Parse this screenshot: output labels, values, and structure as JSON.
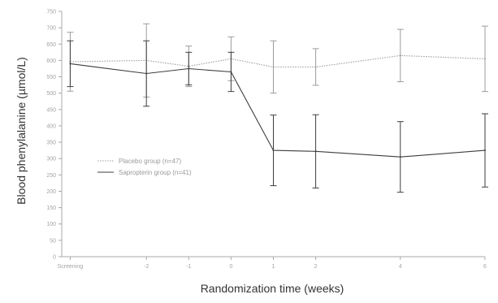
{
  "chart_data": {
    "type": "line",
    "title": "",
    "xlabel": "Randomization time (weeks)",
    "ylabel": "Blood phenylalanine (µmol/L)",
    "categories": [
      "Screening",
      "-2",
      "-1",
      "0",
      "1",
      "2",
      "4",
      "6"
    ],
    "x_positions": [
      -3.8,
      -2,
      -1,
      0,
      1,
      2,
      4,
      6
    ],
    "xlim": [
      -4,
      6
    ],
    "y_tick_labels": [
      "0",
      "50",
      "100",
      "150",
      "200",
      "250",
      "300",
      "350",
      "400",
      "450",
      "500",
      "550",
      "600",
      "650",
      "700",
      "750"
    ],
    "ylim": [
      0,
      750
    ],
    "grid": false,
    "legend_placement": "middle-left",
    "series": [
      {
        "name": "Placebo group (n=47)",
        "color": "#9c9c9c",
        "line_style": "dotted",
        "values": [
          596,
          600,
          582,
          605,
          580,
          580,
          615,
          605
        ],
        "error": [
          90,
          112,
          62,
          67,
          80,
          56,
          80,
          100
        ]
      },
      {
        "name": "Sapropterin group (n=41)",
        "color": "#3d3d3d",
        "line_style": "solid",
        "values": [
          590,
          560,
          575,
          565,
          325,
          322,
          305,
          325
        ],
        "error": [
          70,
          100,
          50,
          60,
          108,
          112,
          108,
          112
        ]
      }
    ]
  }
}
